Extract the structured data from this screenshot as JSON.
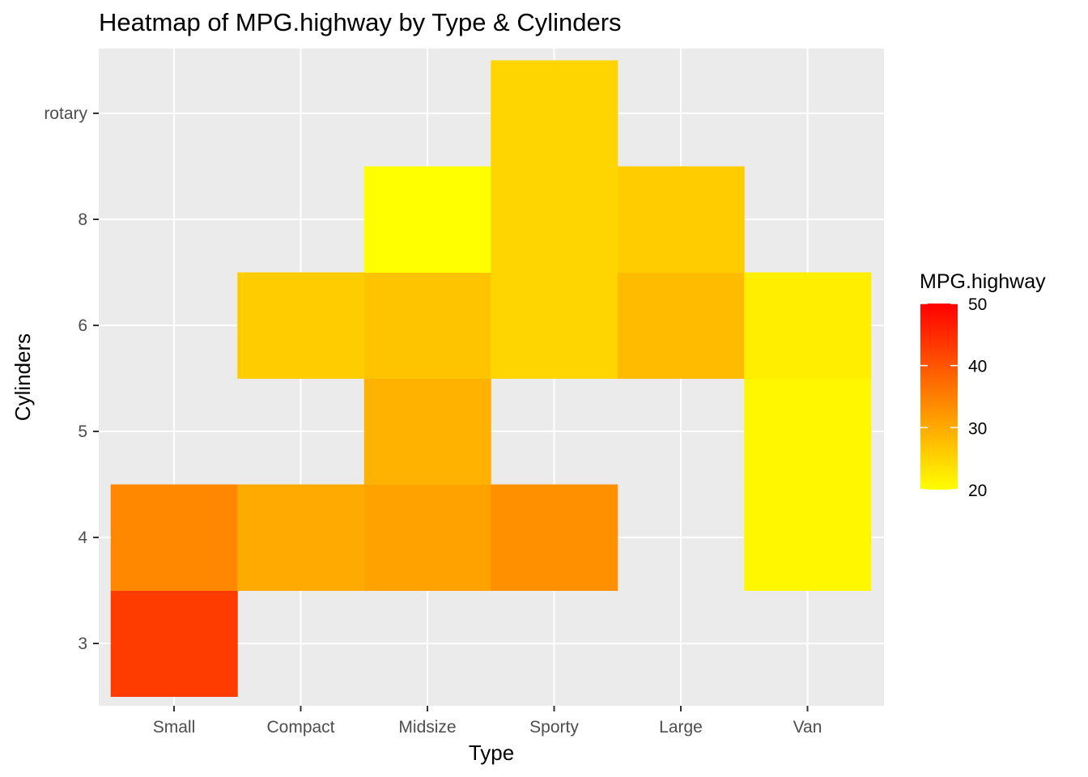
{
  "chart_data": {
    "type": "heatmap",
    "title": "Heatmap of MPG.highway by Type & Cylinders",
    "xlabel": "Type",
    "ylabel": "Cylinders",
    "x_categories": [
      "Small",
      "Compact",
      "Midsize",
      "Sporty",
      "Large",
      "Van"
    ],
    "y_categories": [
      "3",
      "4",
      "5",
      "6",
      "8",
      "rotary"
    ],
    "cells": [
      {
        "x": "Small",
        "y": "3",
        "value": 43
      },
      {
        "x": "Small",
        "y": "4",
        "value": 34
      },
      {
        "x": "Compact",
        "y": "4",
        "value": 30
      },
      {
        "x": "Compact",
        "y": "6",
        "value": 26
      },
      {
        "x": "Midsize",
        "y": "4",
        "value": 31
      },
      {
        "x": "Midsize",
        "y": "5",
        "value": 29
      },
      {
        "x": "Midsize",
        "y": "6",
        "value": 27
      },
      {
        "x": "Midsize",
        "y": "8",
        "value": 20
      },
      {
        "x": "Sporty",
        "y": "4",
        "value": 33
      },
      {
        "x": "Sporty",
        "y": "6",
        "value": 25
      },
      {
        "x": "Sporty",
        "y": "8",
        "value": 25
      },
      {
        "x": "Sporty",
        "y": "rotary",
        "value": 25
      },
      {
        "x": "Large",
        "y": "6",
        "value": 28
      },
      {
        "x": "Large",
        "y": "8",
        "value": 26
      },
      {
        "x": "Van",
        "y": "4",
        "value": 21
      },
      {
        "x": "Van",
        "y": "5",
        "value": 21
      },
      {
        "x": "Van",
        "y": "6",
        "value": 22
      }
    ],
    "legend": {
      "title": "MPG.highway",
      "placement": "right",
      "min": 20,
      "max": 50,
      "ticks": [
        "50",
        "40",
        "30",
        "20"
      ],
      "low_color": "#ffff00",
      "high_color": "#ff0000"
    },
    "panel_background": "#ebebeb",
    "grid": true
  }
}
